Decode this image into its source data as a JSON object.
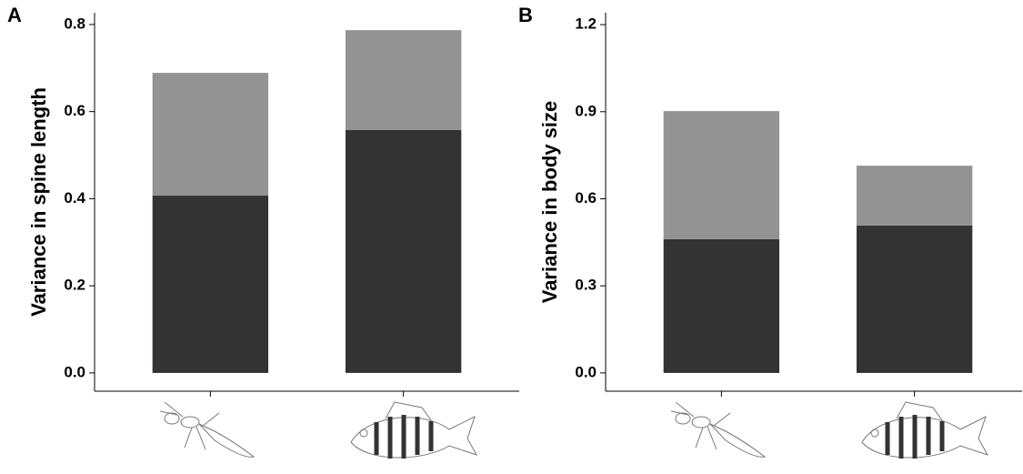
{
  "chart_data": [
    {
      "type": "stacked-bar",
      "label": "A",
      "ylabel": "Variance in spine length",
      "categories": [
        null,
        null
      ],
      "series": [
        {
          "color": "#333333",
          "values": [
            0.407,
            0.558
          ]
        },
        {
          "color": "#939393",
          "values": [
            0.282,
            0.229
          ]
        }
      ],
      "ylim": [
        -0.042,
        0.827
      ],
      "yticks": [
        {
          "value": 0,
          "label": "0.0"
        },
        0.2,
        0.4,
        0.6,
        0.8
      ]
    },
    {
      "type": "stacked-bar",
      "label": "B",
      "ylabel": "Variance in body size",
      "categories": [
        null,
        null
      ],
      "series": [
        {
          "color": "#333333",
          "values": [
            0.461,
            0.508
          ]
        },
        {
          "color": "#939393",
          "values": [
            0.441,
            0.206
          ]
        }
      ],
      "ylim": [
        -0.063,
        1.241
      ],
      "yticks": [
        {
          "value": 0,
          "label": "0.0"
        },
        0.3,
        0.6,
        0.9,
        1.2
      ]
    }
  ]
}
